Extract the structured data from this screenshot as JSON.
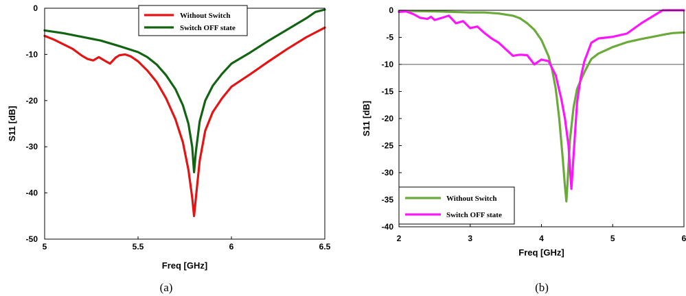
{
  "chart_data": [
    {
      "type": "line",
      "caption": "(a)",
      "xlabel": "Freq [GHz]",
      "ylabel": "S11 [dB]",
      "xlim": [
        5,
        6.5
      ],
      "ylim": [
        -50,
        0
      ],
      "xticks": [
        "5",
        "5.5",
        "6",
        "6.5"
      ],
      "yticks": [
        "0",
        "-10",
        "-20",
        "-30",
        "-40",
        "-50"
      ],
      "legend_position": "top-center",
      "series": [
        {
          "name": "Without Switch",
          "color": "#e31414",
          "points": [
            [
              5.0,
              -6.0
            ],
            [
              5.05,
              -6.8
            ],
            [
              5.1,
              -7.8
            ],
            [
              5.15,
              -8.8
            ],
            [
              5.2,
              -10.3
            ],
            [
              5.23,
              -11.0
            ],
            [
              5.26,
              -11.3
            ],
            [
              5.29,
              -10.6
            ],
            [
              5.32,
              -11.3
            ],
            [
              5.35,
              -12.0
            ],
            [
              5.38,
              -10.7
            ],
            [
              5.4,
              -10.2
            ],
            [
              5.43,
              -10.0
            ],
            [
              5.46,
              -10.4
            ],
            [
              5.5,
              -11.5
            ],
            [
              5.55,
              -13.5
            ],
            [
              5.6,
              -16.0
            ],
            [
              5.65,
              -19.5
            ],
            [
              5.7,
              -24.0
            ],
            [
              5.74,
              -29.0
            ],
            [
              5.77,
              -35.0
            ],
            [
              5.79,
              -41.0
            ],
            [
              5.8,
              -45.0
            ],
            [
              5.81,
              -41.0
            ],
            [
              5.83,
              -33.0
            ],
            [
              5.86,
              -26.5
            ],
            [
              5.9,
              -22.5
            ],
            [
              5.95,
              -19.5
            ],
            [
              6.0,
              -17.0
            ],
            [
              6.1,
              -14.3
            ],
            [
              6.2,
              -11.5
            ],
            [
              6.3,
              -8.8
            ],
            [
              6.4,
              -6.3
            ],
            [
              6.5,
              -4.2
            ]
          ]
        },
        {
          "name": "Switch OFF state",
          "color": "#126312",
          "points": [
            [
              5.0,
              -4.8
            ],
            [
              5.1,
              -5.4
            ],
            [
              5.2,
              -6.2
            ],
            [
              5.3,
              -7.0
            ],
            [
              5.4,
              -8.2
            ],
            [
              5.5,
              -9.5
            ],
            [
              5.55,
              -10.6
            ],
            [
              5.6,
              -12.2
            ],
            [
              5.65,
              -14.5
            ],
            [
              5.7,
              -17.5
            ],
            [
              5.74,
              -21.0
            ],
            [
              5.77,
              -25.0
            ],
            [
              5.79,
              -30.0
            ],
            [
              5.8,
              -35.5
            ],
            [
              5.81,
              -31.0
            ],
            [
              5.83,
              -24.5
            ],
            [
              5.86,
              -20.0
            ],
            [
              5.9,
              -16.8
            ],
            [
              5.95,
              -14.2
            ],
            [
              6.0,
              -12.0
            ],
            [
              6.1,
              -9.6
            ],
            [
              6.2,
              -7.0
            ],
            [
              6.3,
              -4.6
            ],
            [
              6.4,
              -2.2
            ],
            [
              6.45,
              -0.8
            ],
            [
              6.5,
              -0.3
            ]
          ]
        }
      ]
    },
    {
      "type": "line",
      "caption": "(b)",
      "xlabel": "Freq [GHz]",
      "ylabel": "S11 [dB]",
      "xlim": [
        2,
        6
      ],
      "ylim": [
        -40,
        0
      ],
      "xticks": [
        "2",
        "3",
        "4",
        "5",
        "6"
      ],
      "yticks": [
        "0",
        "-5",
        "-10",
        "-15",
        "-20",
        "-25",
        "-30",
        "-35",
        "-40"
      ],
      "reference_line": -10,
      "legend_position": "bottom-left",
      "series": [
        {
          "name": "Without Switch",
          "color": "#6aaa3a",
          "points": [
            [
              2.0,
              -0.1
            ],
            [
              2.5,
              -0.2
            ],
            [
              3.0,
              -0.4
            ],
            [
              3.2,
              -0.4
            ],
            [
              3.4,
              -0.6
            ],
            [
              3.6,
              -1.0
            ],
            [
              3.7,
              -1.5
            ],
            [
              3.8,
              -2.4
            ],
            [
              3.9,
              -3.6
            ],
            [
              4.0,
              -5.5
            ],
            [
              4.1,
              -8.5
            ],
            [
              4.15,
              -11.0
            ],
            [
              4.2,
              -14.5
            ],
            [
              4.25,
              -20.0
            ],
            [
              4.3,
              -27.5
            ],
            [
              4.33,
              -32.5
            ],
            [
              4.35,
              -35.3
            ],
            [
              4.37,
              -31.0
            ],
            [
              4.4,
              -24.0
            ],
            [
              4.45,
              -18.0
            ],
            [
              4.5,
              -14.5
            ],
            [
              4.6,
              -11.5
            ],
            [
              4.7,
              -9.0
            ],
            [
              4.8,
              -8.0
            ],
            [
              5.0,
              -6.8
            ],
            [
              5.2,
              -5.9
            ],
            [
              5.4,
              -5.3
            ],
            [
              5.6,
              -4.8
            ],
            [
              5.75,
              -4.4
            ],
            [
              5.85,
              -4.2
            ],
            [
              6.0,
              -4.1
            ]
          ]
        },
        {
          "name": "Switch OFF state",
          "color": "#ff14ff",
          "points": [
            [
              2.0,
              -0.3
            ],
            [
              2.1,
              -0.2
            ],
            [
              2.2,
              -0.7
            ],
            [
              2.3,
              -1.4
            ],
            [
              2.4,
              -1.6
            ],
            [
              2.45,
              -1.2
            ],
            [
              2.5,
              -1.8
            ],
            [
              2.6,
              -1.4
            ],
            [
              2.7,
              -1.0
            ],
            [
              2.8,
              -2.4
            ],
            [
              2.9,
              -2.0
            ],
            [
              3.0,
              -3.3
            ],
            [
              3.1,
              -3.0
            ],
            [
              3.2,
              -4.2
            ],
            [
              3.3,
              -5.2
            ],
            [
              3.4,
              -6.0
            ],
            [
              3.5,
              -7.2
            ],
            [
              3.6,
              -8.4
            ],
            [
              3.7,
              -8.2
            ],
            [
              3.8,
              -8.3
            ],
            [
              3.9,
              -10.0
            ],
            [
              4.0,
              -9.1
            ],
            [
              4.1,
              -9.4
            ],
            [
              4.2,
              -12.0
            ],
            [
              4.28,
              -16.5
            ],
            [
              4.33,
              -20.0
            ],
            [
              4.38,
              -25.0
            ],
            [
              4.42,
              -33.0
            ],
            [
              4.46,
              -25.0
            ],
            [
              4.5,
              -17.0
            ],
            [
              4.55,
              -12.5
            ],
            [
              4.6,
              -9.5
            ],
            [
              4.7,
              -6.0
            ],
            [
              4.8,
              -5.2
            ],
            [
              5.0,
              -4.9
            ],
            [
              5.2,
              -4.3
            ],
            [
              5.4,
              -2.4
            ],
            [
              5.55,
              -1.2
            ],
            [
              5.7,
              0.0
            ],
            [
              6.0,
              0.0
            ]
          ]
        }
      ]
    }
  ]
}
